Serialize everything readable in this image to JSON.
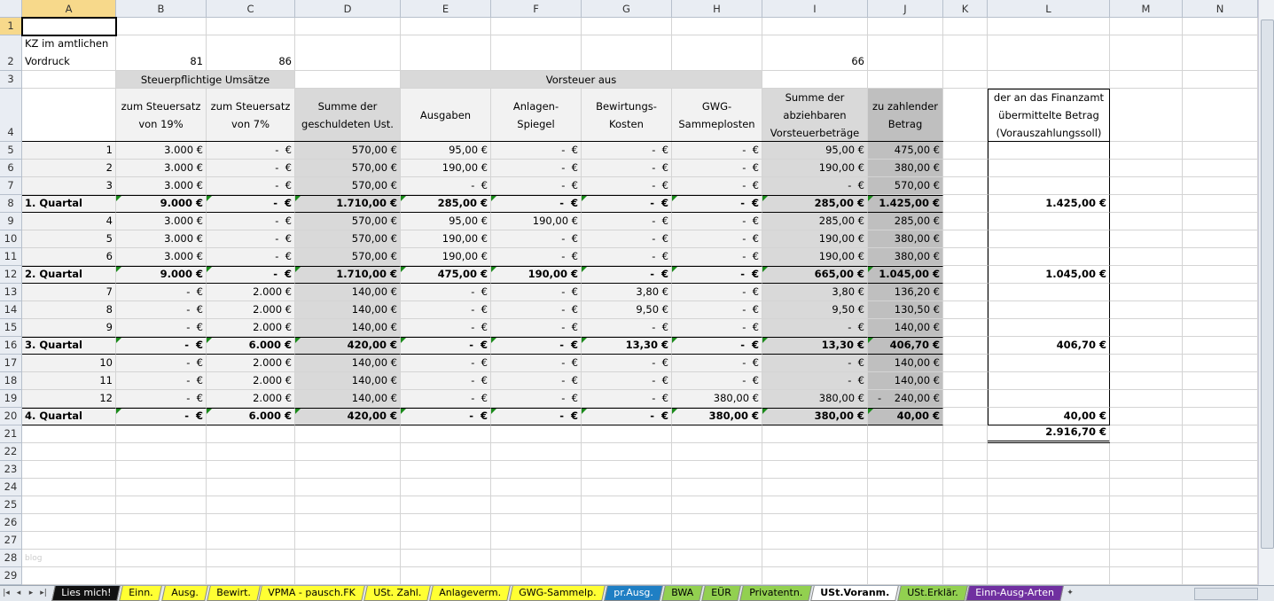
{
  "columns": [
    "A",
    "B",
    "C",
    "D",
    "E",
    "F",
    "G",
    "H",
    "I",
    "J",
    "K",
    "L",
    "M",
    "N"
  ],
  "row_numbers": [
    "1",
    "2",
    "3",
    "4",
    "5",
    "6",
    "7",
    "8",
    "9",
    "10",
    "11",
    "12",
    "13",
    "14",
    "15",
    "16",
    "17",
    "18",
    "19",
    "20",
    "21",
    "22",
    "23",
    "24",
    "25",
    "26",
    "27",
    "28",
    "29"
  ],
  "header": {
    "a2": "KZ im amtlichen\nVordruck",
    "b2": "81",
    "c2": "86",
    "i2": "66",
    "b3": "Steuerpflichtige Umsätze",
    "e3": "Vorsteuer aus",
    "b4": "zum Steuersatz\nvon 19%",
    "c4": "zum Steuersatz\nvon 7%",
    "d4": "Summe der\ngeschuldeten Ust.",
    "e4": "Ausgaben",
    "f4": "Anlagen-\nSpiegel",
    "g4": "Bewirtungs-\nKosten",
    "h4": "GWG-\nSammeplosten",
    "i4": "Summe der\nabziehbaren\nVorsteuerbeträge",
    "j4": "zu zahlender\nBetrag",
    "l4": "der an das Finanzamt\nübermittelte Betrag\n(Vorauszahlungssoll)"
  },
  "rows": [
    {
      "bold": false,
      "cells": [
        "1",
        "3.000 €",
        "-  €",
        "570,00 €",
        "95,00 €",
        "-  €",
        "-  €",
        "-  €",
        "95,00 €",
        "475,00 €",
        ""
      ]
    },
    {
      "bold": false,
      "cells": [
        "2",
        "3.000 €",
        "-  €",
        "570,00 €",
        "190,00 €",
        "-  €",
        "-  €",
        "-  €",
        "190,00 €",
        "380,00 €",
        ""
      ]
    },
    {
      "bold": false,
      "cells": [
        "3",
        "3.000 €",
        "-  €",
        "570,00 €",
        "-  €",
        "-  €",
        "-  €",
        "-  €",
        "-  €",
        "570,00 €",
        ""
      ]
    },
    {
      "bold": true,
      "cells": [
        "1. Quartal",
        "9.000 €",
        "-  €",
        "1.710,00 €",
        "285,00 €",
        "-  €",
        "-  €",
        "-  €",
        "285,00 €",
        "1.425,00 €",
        "1.425,00 €"
      ]
    },
    {
      "bold": false,
      "cells": [
        "4",
        "3.000 €",
        "-  €",
        "570,00 €",
        "95,00 €",
        "190,00 €",
        "-  €",
        "-  €",
        "285,00 €",
        "285,00 €",
        ""
      ]
    },
    {
      "bold": false,
      "cells": [
        "5",
        "3.000 €",
        "-  €",
        "570,00 €",
        "190,00 €",
        "-  €",
        "-  €",
        "-  €",
        "190,00 €",
        "380,00 €",
        ""
      ]
    },
    {
      "bold": false,
      "cells": [
        "6",
        "3.000 €",
        "-  €",
        "570,00 €",
        "190,00 €",
        "-  €",
        "-  €",
        "-  €",
        "190,00 €",
        "380,00 €",
        ""
      ]
    },
    {
      "bold": true,
      "cells": [
        "2. Quartal",
        "9.000 €",
        "-  €",
        "1.710,00 €",
        "475,00 €",
        "190,00 €",
        "-  €",
        "-  €",
        "665,00 €",
        "1.045,00 €",
        "1.045,00 €"
      ]
    },
    {
      "bold": false,
      "cells": [
        "7",
        "-  €",
        "2.000 €",
        "140,00 €",
        "-  €",
        "-  €",
        "3,80 €",
        "-  €",
        "3,80 €",
        "136,20 €",
        ""
      ]
    },
    {
      "bold": false,
      "cells": [
        "8",
        "-  €",
        "2.000 €",
        "140,00 €",
        "-  €",
        "-  €",
        "9,50 €",
        "-  €",
        "9,50 €",
        "130,50 €",
        ""
      ]
    },
    {
      "bold": false,
      "cells": [
        "9",
        "-  €",
        "2.000 €",
        "140,00 €",
        "-  €",
        "-  €",
        "-  €",
        "-  €",
        "-  €",
        "140,00 €",
        ""
      ]
    },
    {
      "bold": true,
      "cells": [
        "3. Quartal",
        "-  €",
        "6.000 €",
        "420,00 €",
        "-  €",
        "-  €",
        "13,30 €",
        "-  €",
        "13,30 €",
        "406,70 €",
        "406,70 €"
      ]
    },
    {
      "bold": false,
      "cells": [
        "10",
        "-  €",
        "2.000 €",
        "140,00 €",
        "-  €",
        "-  €",
        "-  €",
        "-  €",
        "-  €",
        "140,00 €",
        ""
      ]
    },
    {
      "bold": false,
      "cells": [
        "11",
        "-  €",
        "2.000 €",
        "140,00 €",
        "-  €",
        "-  €",
        "-  €",
        "-  €",
        "-  €",
        "140,00 €",
        ""
      ]
    },
    {
      "bold": false,
      "cells": [
        "12",
        "-  €",
        "2.000 €",
        "140,00 €",
        "-  €",
        "-  €",
        "-  €",
        "380,00 €",
        "380,00 €",
        "-    240,00 €",
        ""
      ]
    },
    {
      "bold": true,
      "cells": [
        "4. Quartal",
        "-  €",
        "6.000 €",
        "420,00 €",
        "-  €",
        "-  €",
        "-  €",
        "380,00 €",
        "380,00 €",
        "40,00 €",
        "40,00 €"
      ]
    }
  ],
  "total_l21": "2.916,70 €",
  "watermark": "blog",
  "colors": {
    "light_fill": "#f2f2f2",
    "mid_fill": "#d9d9d9",
    "dark_fill": "#bfbfbf",
    "error_indicator": "#1a8a1a"
  },
  "tabs": [
    {
      "label": "Lies mich!",
      "bg": "#111111",
      "fg": "#ffffff"
    },
    {
      "label": "Einn.",
      "bg": "#ffff33",
      "fg": "#000000"
    },
    {
      "label": "Ausg.",
      "bg": "#ffff33",
      "fg": "#000000"
    },
    {
      "label": "Bewirt.",
      "bg": "#ffff33",
      "fg": "#000000"
    },
    {
      "label": "VPMA - pausch.FK",
      "bg": "#ffff33",
      "fg": "#000000"
    },
    {
      "label": "USt. Zahl.",
      "bg": "#ffff33",
      "fg": "#000000"
    },
    {
      "label": "Anlageverm.",
      "bg": "#ffff33",
      "fg": "#000000"
    },
    {
      "label": "GWG-Sammelp.",
      "bg": "#ffff33",
      "fg": "#000000"
    },
    {
      "label": "pr.Ausg.",
      "bg": "#1f7fc4",
      "fg": "#ffffff"
    },
    {
      "label": "BWA",
      "bg": "#92d050",
      "fg": "#000000"
    },
    {
      "label": "EÜR",
      "bg": "#92d050",
      "fg": "#000000"
    },
    {
      "label": "Privatentn.",
      "bg": "#92d050",
      "fg": "#000000"
    },
    {
      "label": "USt.Voranm.",
      "bg": "#ffffff",
      "fg": "#000000",
      "active": true
    },
    {
      "label": "USt.Erklär.",
      "bg": "#92d050",
      "fg": "#000000"
    },
    {
      "label": "Einn-Ausg-Arten",
      "bg": "#7030a0",
      "fg": "#ffffff"
    }
  ]
}
